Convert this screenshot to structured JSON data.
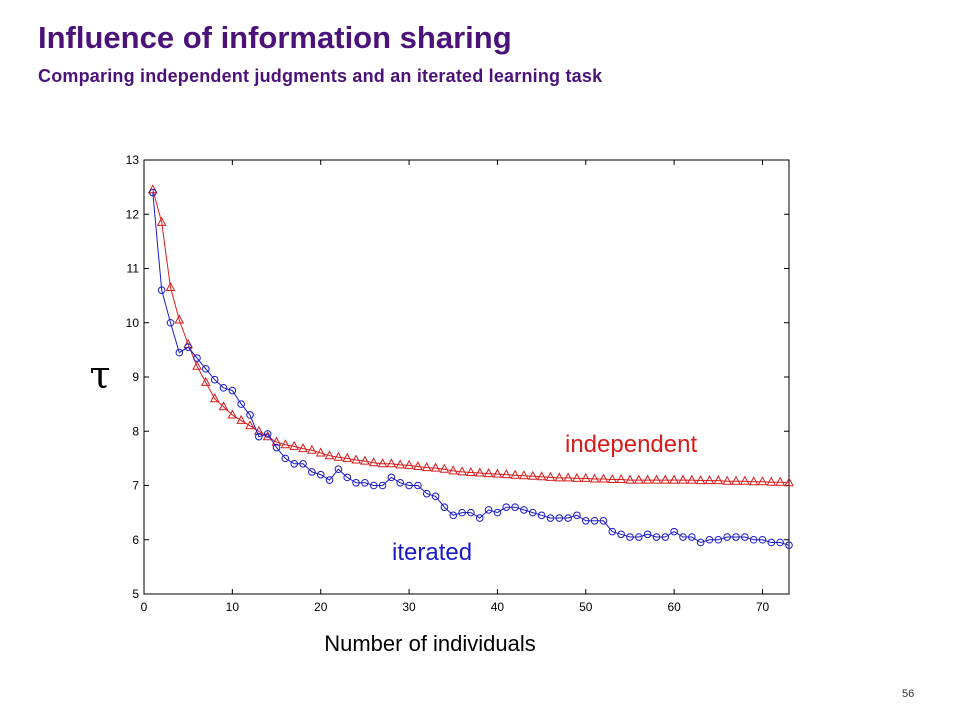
{
  "slide": {
    "title": "Influence of information sharing",
    "subtitle": "Comparing independent judgments and an iterated learning task",
    "page_number": "56"
  },
  "colors": {
    "title": "#4b1279",
    "independent": "#d81b1b",
    "iterated": "#1a1ac8"
  },
  "chart_data": {
    "type": "line",
    "xlabel": "Number of individuals",
    "ylabel": "τ",
    "xlim": [
      0,
      73
    ],
    "ylim": [
      5,
      13
    ],
    "xticks": [
      0,
      10,
      20,
      30,
      40,
      50,
      60,
      70
    ],
    "yticks": [
      5,
      6,
      7,
      8,
      9,
      10,
      11,
      12,
      13
    ],
    "x": [
      1,
      2,
      3,
      4,
      5,
      6,
      7,
      8,
      9,
      10,
      11,
      12,
      13,
      14,
      15,
      16,
      17,
      18,
      19,
      20,
      21,
      22,
      23,
      24,
      25,
      26,
      27,
      28,
      29,
      30,
      31,
      32,
      33,
      34,
      35,
      36,
      37,
      38,
      39,
      40,
      41,
      42,
      43,
      44,
      45,
      46,
      47,
      48,
      49,
      50,
      51,
      52,
      53,
      54,
      55,
      56,
      57,
      58,
      59,
      60,
      61,
      62,
      63,
      64,
      65,
      66,
      67,
      68,
      69,
      70,
      71,
      72,
      73
    ],
    "series": [
      {
        "name": "independent",
        "marker": "triangle",
        "color": "#d81b1b",
        "values": [
          12.45,
          11.85,
          10.65,
          10.05,
          9.6,
          9.2,
          8.9,
          8.6,
          8.45,
          8.3,
          8.2,
          8.1,
          8.0,
          7.9,
          7.8,
          7.75,
          7.72,
          7.68,
          7.65,
          7.6,
          7.55,
          7.52,
          7.5,
          7.47,
          7.45,
          7.42,
          7.4,
          7.4,
          7.38,
          7.37,
          7.35,
          7.33,
          7.32,
          7.3,
          7.27,
          7.25,
          7.24,
          7.23,
          7.22,
          7.21,
          7.2,
          7.19,
          7.18,
          7.17,
          7.16,
          7.15,
          7.14,
          7.14,
          7.13,
          7.13,
          7.12,
          7.12,
          7.11,
          7.11,
          7.1,
          7.1,
          7.1,
          7.1,
          7.1,
          7.1,
          7.1,
          7.1,
          7.09,
          7.09,
          7.09,
          7.08,
          7.08,
          7.08,
          7.07,
          7.07,
          7.06,
          7.06,
          7.05
        ]
      },
      {
        "name": "iterated",
        "marker": "circle",
        "color": "#1a1ac8",
        "values": [
          12.4,
          10.6,
          10.0,
          9.45,
          9.55,
          9.35,
          9.15,
          8.95,
          8.8,
          8.75,
          8.5,
          8.3,
          7.9,
          7.95,
          7.7,
          7.5,
          7.4,
          7.4,
          7.25,
          7.2,
          7.1,
          7.3,
          7.15,
          7.05,
          7.05,
          7.0,
          7.0,
          7.15,
          7.05,
          7.0,
          7.0,
          6.85,
          6.8,
          6.6,
          6.45,
          6.5,
          6.5,
          6.4,
          6.55,
          6.5,
          6.6,
          6.6,
          6.55,
          6.5,
          6.45,
          6.4,
          6.4,
          6.4,
          6.45,
          6.35,
          6.35,
          6.35,
          6.15,
          6.1,
          6.05,
          6.05,
          6.1,
          6.05,
          6.05,
          6.15,
          6.05,
          6.05,
          5.95,
          6.0,
          6.0,
          6.05,
          6.05,
          6.05,
          6.0,
          6.0,
          5.95,
          5.95,
          5.9
        ]
      }
    ],
    "annotations": [
      {
        "text": "independent",
        "color": "#d81b1b"
      },
      {
        "text": "iterated",
        "color": "#1a1ac8"
      }
    ],
    "grid": false,
    "legend": "none"
  }
}
